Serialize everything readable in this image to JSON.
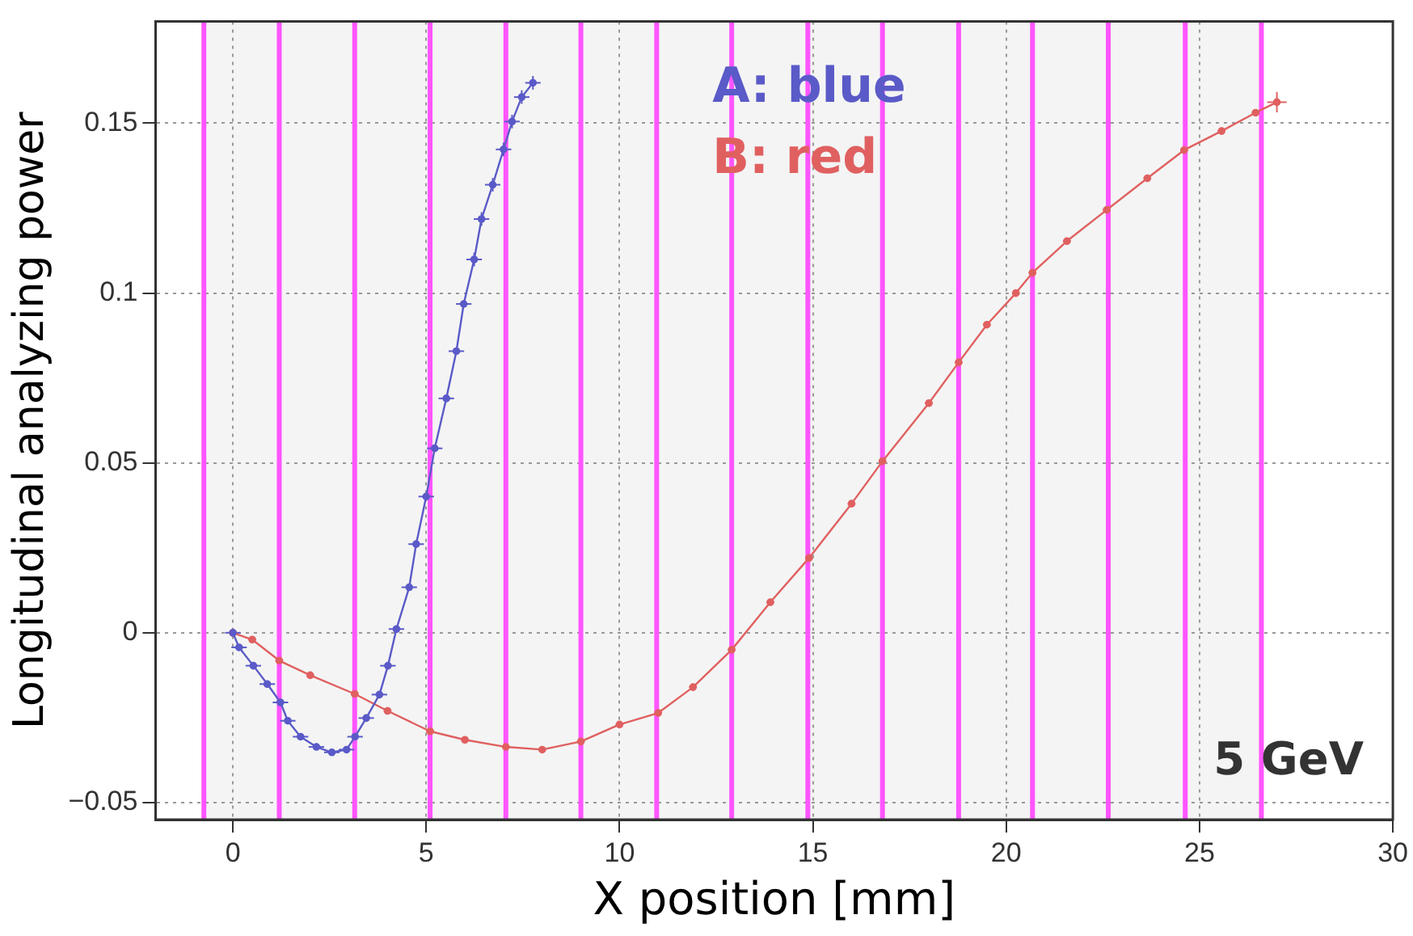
{
  "chart_data": {
    "type": "line",
    "xlabel": "X position [mm]",
    "ylabel": "Longitudinal analyzing power",
    "xlim": [
      -2,
      30
    ],
    "xticks": [
      0,
      5,
      10,
      15,
      20,
      25,
      30
    ],
    "ylim": [
      -0.055,
      0.18
    ],
    "yticks": [
      {
        "value": -0.05,
        "label": "−0.05"
      },
      0,
      0.05,
      {
        "value": 0.1,
        "label": "0.1"
      },
      0.15
    ],
    "grid": true,
    "legend": "top",
    "marker": "circle",
    "line_style": "solid",
    "series": [
      {
        "name": "A: blue",
        "color": "#5a5ac8",
        "x": [
          0,
          0.16,
          0.53,
          0.89,
          1.23,
          1.42,
          1.75,
          2.16,
          2.56,
          2.94,
          3.16,
          3.45,
          3.79,
          4.01,
          4.23,
          4.56,
          4.74,
          5.0,
          5.22,
          5.52,
          5.78,
          5.97,
          6.24,
          6.43,
          6.72,
          7.0,
          7.22,
          7.47,
          7.76
        ],
        "values": [
          0,
          -0.0043,
          -0.0097,
          -0.0151,
          -0.0205,
          -0.0259,
          -0.0306,
          -0.0336,
          -0.0352,
          -0.0344,
          -0.0306,
          -0.0251,
          -0.0182,
          -0.0097,
          0.0011,
          0.0134,
          0.0261,
          0.0401,
          0.0543,
          0.069,
          0.0829,
          0.0968,
          0.1099,
          0.1218,
          0.1319,
          0.1423,
          0.1505,
          0.1577,
          0.1619
        ],
        "xerrors": [
          0.2,
          0.2,
          0.2,
          0.2,
          0.2,
          0.2,
          0.2,
          0.2,
          0.2,
          0.2,
          0.2,
          0.2,
          0.2,
          0.2,
          0.2,
          0.2,
          0.2,
          0.2,
          0.2,
          0.2,
          0.2,
          0.2,
          0.2,
          0.2,
          0.2,
          0.2,
          0.2,
          0.2,
          0.2
        ],
        "errors": [
          0.001,
          0.001,
          0.001,
          0.001,
          0.001,
          0.001,
          0.001,
          0.001,
          0.001,
          0.001,
          0.001,
          0.001,
          0.001,
          0.001,
          0.001,
          0.001,
          0.001,
          0.001,
          0.001,
          0.001,
          0.001,
          0.001,
          0.002,
          0.002,
          0.002,
          0.002,
          0.002,
          0.002,
          0.002
        ]
      },
      {
        "name": "B: red",
        "color": "#e06060",
        "x": [
          0,
          0.5,
          1.2,
          2,
          3.15,
          4,
          5.1,
          6,
          7.06,
          8,
          9,
          10,
          11,
          11.9,
          12.9,
          13.9,
          14.9,
          16,
          16.8,
          18,
          18.77,
          19.5,
          20.25,
          20.68,
          21.57,
          22.6,
          23.65,
          24.6,
          25.57,
          26.45,
          27
        ],
        "values": [
          0,
          -0.002,
          -0.0082,
          -0.0125,
          -0.018,
          -0.023,
          -0.029,
          -0.0315,
          -0.0336,
          -0.0344,
          -0.032,
          -0.027,
          -0.0236,
          -0.016,
          -0.005,
          0.009,
          0.022,
          0.038,
          0.0505,
          0.0676,
          0.0796,
          0.0907,
          0.1,
          0.106,
          0.1153,
          0.1245,
          0.1338,
          0.1421,
          0.1477,
          0.1531,
          0.1562
        ],
        "xerrors": [
          0.1,
          0.1,
          0.1,
          0.1,
          0.1,
          0.1,
          0.1,
          0.1,
          0.1,
          0.1,
          0.1,
          0.1,
          0.1,
          0.1,
          0.1,
          0.1,
          0.1,
          0.1,
          0.1,
          0.1,
          0.1,
          0.1,
          0.1,
          0.1,
          0.1,
          0.1,
          0.1,
          0.1,
          0.1,
          0.1,
          0.25
        ],
        "errors": [
          0.001,
          0.001,
          0.001,
          0.001,
          0.001,
          0.001,
          0.001,
          0.001,
          0.001,
          0.001,
          0.001,
          0.001,
          0.001,
          0.001,
          0.001,
          0.001,
          0.001,
          0.001,
          0.001,
          0.001,
          0.001,
          0.001,
          0.001,
          0.001,
          0.001,
          0.001,
          0.001,
          0.001,
          0.001,
          0.001,
          0.003
        ]
      }
    ],
    "bands": [
      {
        "axis": "x",
        "from": -0.75,
        "to": 26.6,
        "color": "#f4f4f4"
      }
    ],
    "ref_lines": [
      {
        "axis": "x",
        "value": -0.75,
        "color": "#ff55ff"
      },
      {
        "axis": "x",
        "value": 1.2,
        "color": "#ff55ff"
      },
      {
        "axis": "x",
        "value": 3.15,
        "color": "#ff55ff"
      },
      {
        "axis": "x",
        "value": 5.1,
        "color": "#ff55ff"
      },
      {
        "axis": "x",
        "value": 7.06,
        "color": "#ff55ff"
      },
      {
        "axis": "x",
        "value": 9.0,
        "color": "#ff55ff"
      },
      {
        "axis": "x",
        "value": 10.96,
        "color": "#ff55ff"
      },
      {
        "axis": "x",
        "value": 12.9,
        "color": "#ff55ff"
      },
      {
        "axis": "x",
        "value": 14.87,
        "color": "#ff55ff"
      },
      {
        "axis": "x",
        "value": 16.8,
        "color": "#ff55ff"
      },
      {
        "axis": "x",
        "value": 18.77,
        "color": "#ff55ff"
      },
      {
        "axis": "x",
        "value": 20.68,
        "color": "#ff55ff"
      },
      {
        "axis": "x",
        "value": 22.64,
        "color": "#ff55ff"
      },
      {
        "axis": "x",
        "value": 24.63,
        "color": "#ff55ff"
      },
      {
        "axis": "x",
        "value": 26.6,
        "color": "#ff55ff"
      }
    ],
    "annotations": [
      "5 GeV"
    ]
  }
}
